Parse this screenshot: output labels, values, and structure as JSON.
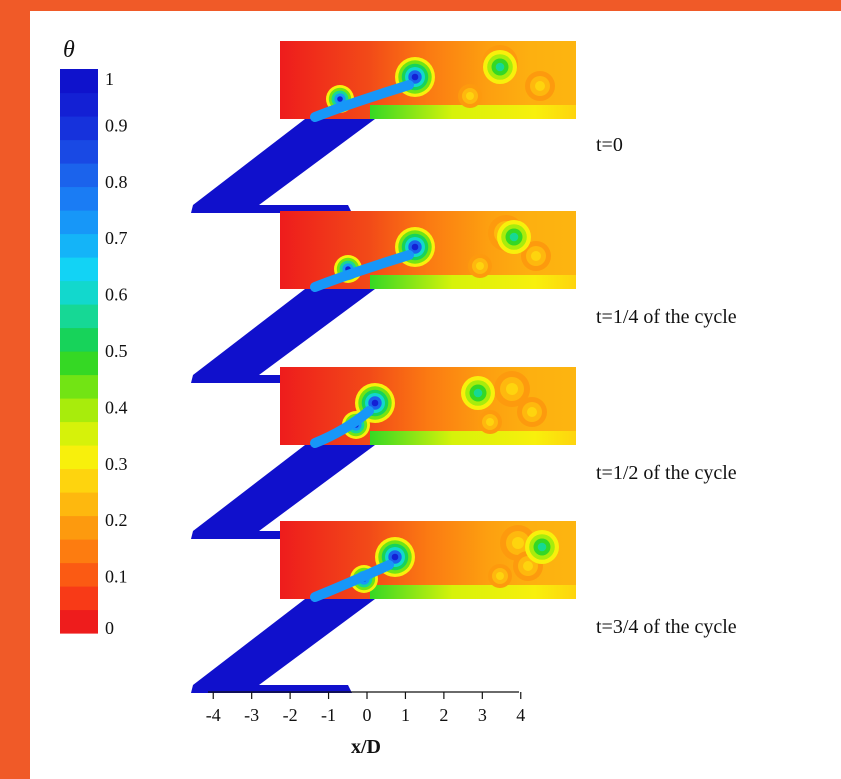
{
  "colorbar": {
    "symbol": "θ",
    "levels": [
      "#ee1c1c",
      "#f83a17",
      "#fb5a13",
      "#fd7c10",
      "#fd9a0e",
      "#feb80e",
      "#fed40e",
      "#f8f00c",
      "#d6f20a",
      "#a8ec0c",
      "#72e414",
      "#35d824",
      "#17d35a",
      "#16d895",
      "#12d8cd",
      "#12d3f5",
      "#14b4f8",
      "#1797f8",
      "#1a7cf4",
      "#1b63ec",
      "#1949e4",
      "#1632dc",
      "#1320d4",
      "#0f12cc"
    ],
    "ticks": [
      {
        "label": "1",
        "value": 1.0
      },
      {
        "label": "0.9",
        "value": 0.9
      },
      {
        "label": "0.8",
        "value": 0.8
      },
      {
        "label": "0.7",
        "value": 0.7
      },
      {
        "label": "0.6",
        "value": 0.6
      },
      {
        "label": "0.5",
        "value": 0.5
      },
      {
        "label": "0.4",
        "value": 0.4
      },
      {
        "label": "0.3",
        "value": 0.3
      },
      {
        "label": "0.2",
        "value": 0.2
      },
      {
        "label": "0.1",
        "value": 0.1
      },
      {
        "label": "0",
        "value": 0.0
      }
    ]
  },
  "panels": [
    {
      "label": "t=0",
      "phase": 0
    },
    {
      "label": "t=1/4 of the cycle",
      "phase": 1
    },
    {
      "label": "t=1/2 of the cycle",
      "phase": 2
    },
    {
      "label": "t=3/4 of the cycle",
      "phase": 3
    }
  ],
  "x_axis": {
    "label": "x/D",
    "ticks": [
      {
        "label": "-4",
        "value": -4
      },
      {
        "label": "-3",
        "value": -3
      },
      {
        "label": "-2",
        "value": -2
      },
      {
        "label": "-1",
        "value": -1
      },
      {
        "label": "0",
        "value": 0
      },
      {
        "label": "1",
        "value": 1
      },
      {
        "label": "2",
        "value": 2
      },
      {
        "label": "3",
        "value": 3
      },
      {
        "label": "4",
        "value": 4
      }
    ]
  },
  "colors": {
    "frame": "#f05a28",
    "jet": "#1010cc",
    "background_contour": "#ee1c1c"
  }
}
